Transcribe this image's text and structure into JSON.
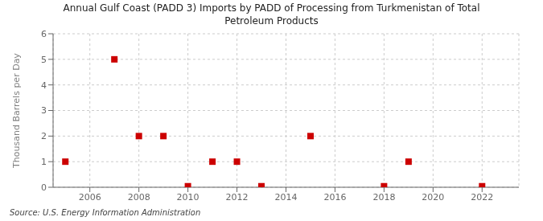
{
  "chart_data": {
    "type": "scatter",
    "title": "Annual Gulf Coast (PADD 3) Imports by PADD of Processing from Turkmenistan of Total\nPetroleum Products",
    "ylabel": "Thousand Barrels per Day",
    "source": "Source: U.S. Energy Information Administration",
    "xlim": [
      2004.5,
      2023.5
    ],
    "ylim": [
      0,
      6
    ],
    "xticks": [
      2006,
      2008,
      2010,
      2012,
      2014,
      2016,
      2018,
      2020,
      2022
    ],
    "yticks": [
      0,
      1,
      2,
      3,
      4,
      5,
      6
    ],
    "grid": true,
    "series": [
      {
        "color": "#cc0000",
        "marker": "square",
        "x": [
          2005,
          2007,
          2008,
          2009,
          2011,
          2012,
          2013,
          2015,
          2018,
          2019,
          2022
        ],
        "values": [
          1,
          5,
          2,
          2,
          1,
          1,
          0.04,
          2,
          0.04,
          1,
          0.04
        ]
      },
      {
        "color": "#cc0000",
        "marker": "square",
        "x": [
          2010
        ],
        "values": [
          0.04
        ]
      }
    ]
  }
}
